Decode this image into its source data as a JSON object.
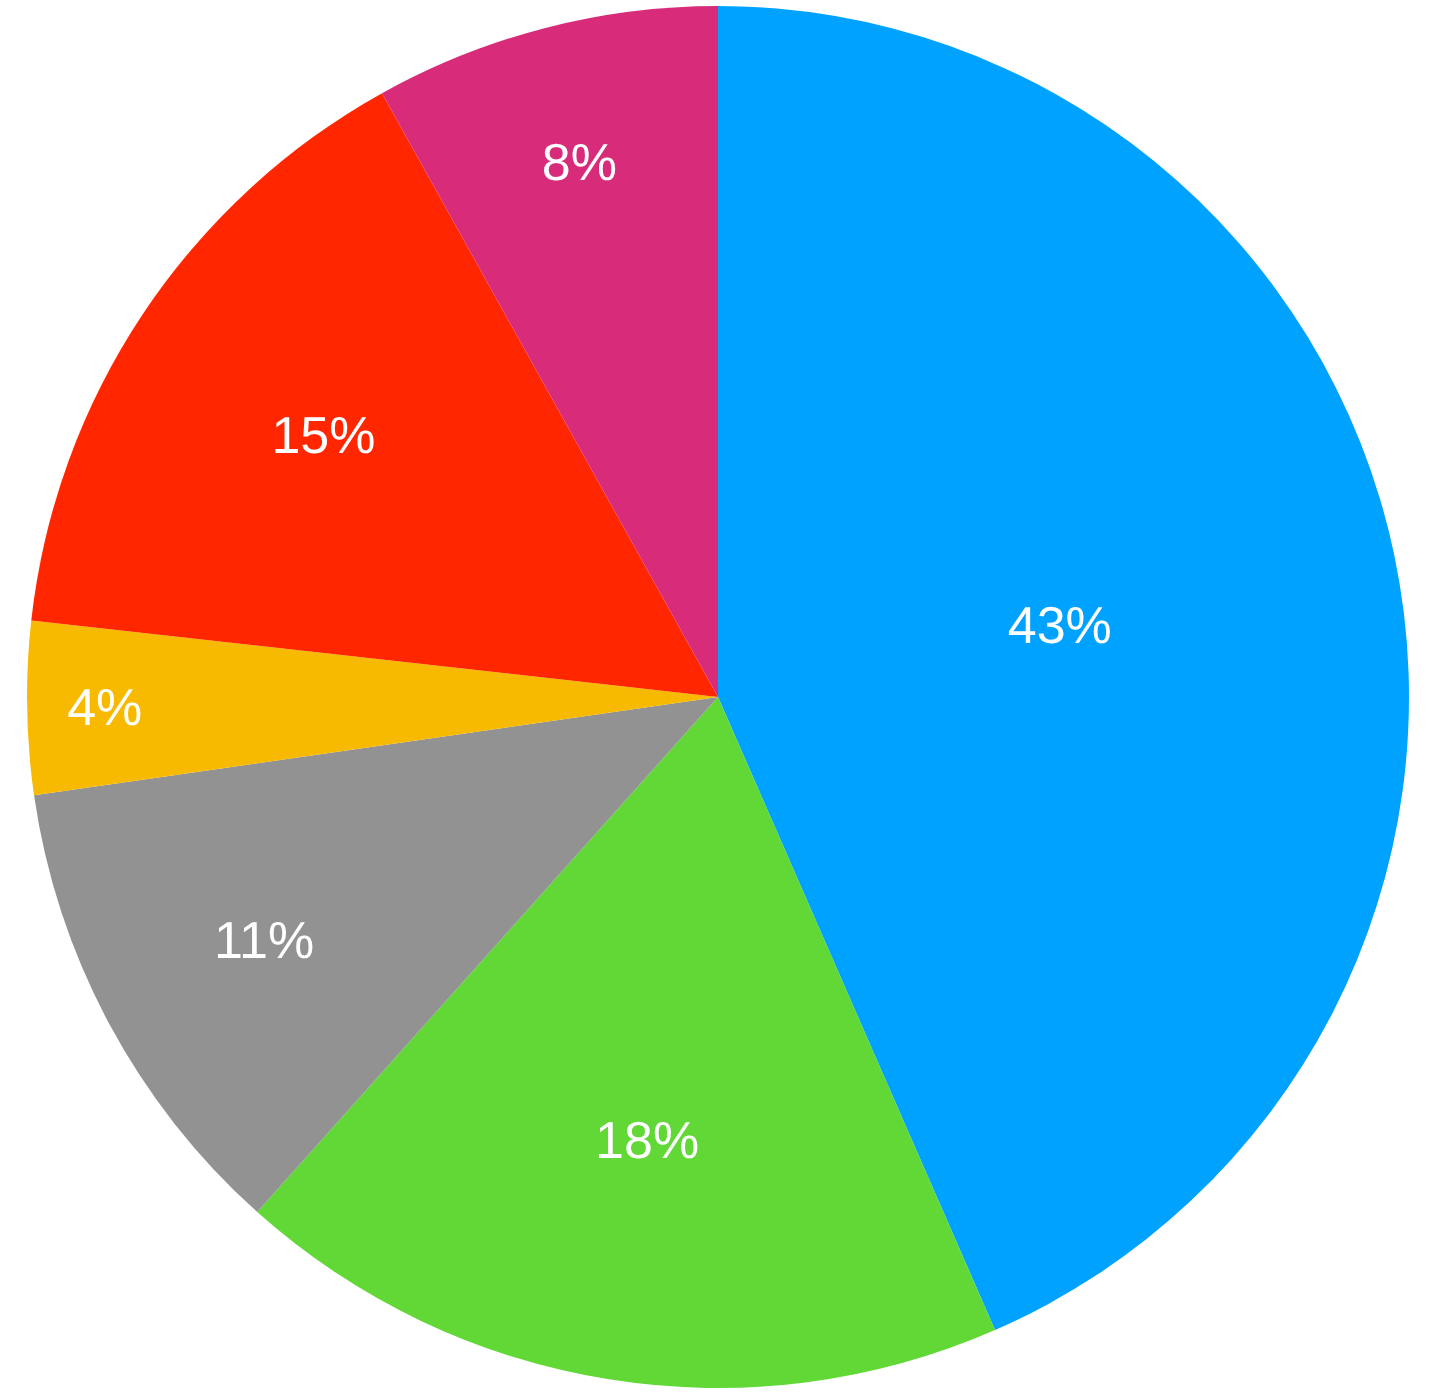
{
  "chart_data": {
    "type": "pie",
    "categories": [
      null,
      null,
      null,
      null,
      null,
      null
    ],
    "values": [
      43,
      18,
      11,
      4,
      15,
      8
    ],
    "value_labels": [
      "43%",
      "18%",
      "11%",
      "4%",
      "15%",
      "8%"
    ],
    "colors": [
      "#00a2ff",
      "#61d836",
      "#929292",
      "#f8ba00",
      "#ff2600",
      "#d82c7b"
    ]
  }
}
